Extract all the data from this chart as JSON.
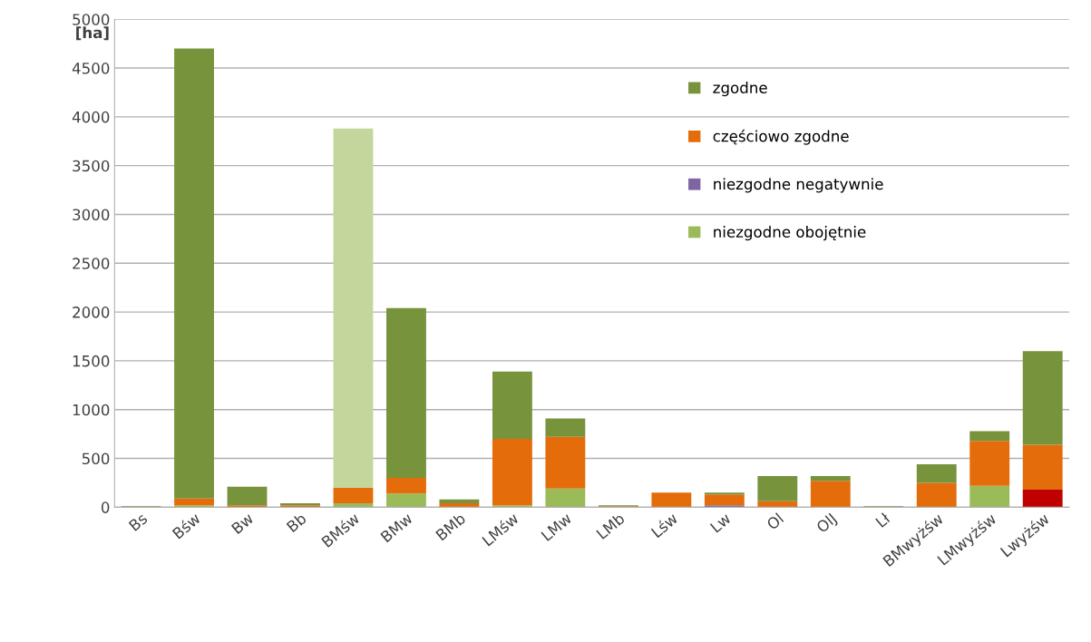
{
  "chart_data": {
    "type": "bar",
    "stacked": true,
    "ylabel": "[ha]",
    "categories": [
      "Bs",
      "Bśw",
      "Bw",
      "Bb",
      "BMśw",
      "BMw",
      "BMb",
      "LMśw",
      "LMw",
      "LMb",
      "Lśw",
      "Lw",
      "Ol",
      "OlJ",
      "Lł",
      "BMwyżśw",
      "LMwyżśw",
      "Lwyżśw"
    ],
    "series": [
      {
        "color": "#c00000",
        "values": [
          0,
          0,
          0,
          0,
          0,
          0,
          0,
          0,
          0,
          0,
          0,
          0,
          0,
          0,
          0,
          0,
          0,
          180
        ]
      },
      {
        "name": "niezgodne obojętnie",
        "color": "#9bbb59",
        "values": [
          0,
          20,
          0,
          0,
          40,
          140,
          0,
          20,
          190,
          0,
          0,
          0,
          0,
          0,
          0,
          0,
          220,
          0
        ]
      },
      {
        "name": "niezgodne negatywnie",
        "color": "#8064a2",
        "values": [
          0,
          0,
          0,
          0,
          0,
          0,
          0,
          0,
          0,
          0,
          0,
          20,
          0,
          0,
          0,
          0,
          0,
          0
        ]
      },
      {
        "name": "częściowo zgodne",
        "color": "#e46c0a",
        "values": [
          null,
          70,
          20,
          20,
          160,
          160,
          40,
          680,
          530,
          10,
          150,
          110,
          60,
          270,
          0,
          250,
          460,
          460
        ]
      },
      {
        "name": "zgodne",
        "color": "#77933c",
        "values": [
          10,
          4610,
          190,
          20,
          0,
          1740,
          40,
          690,
          190,
          10,
          0,
          20,
          260,
          50,
          10,
          190,
          100,
          960
        ]
      },
      {
        "color": "#c3d69b",
        "values": [
          0,
          0,
          0,
          0,
          3680,
          0,
          0,
          0,
          0,
          0,
          0,
          0,
          0,
          0,
          0,
          0,
          0,
          0
        ]
      }
    ],
    "ylim": [
      0,
      5000
    ],
    "yticks": [
      0,
      500,
      1000,
      1500,
      2000,
      2500,
      3000,
      3500,
      4000,
      4500,
      5000
    ],
    "grid": "y",
    "legend": "top right"
  }
}
